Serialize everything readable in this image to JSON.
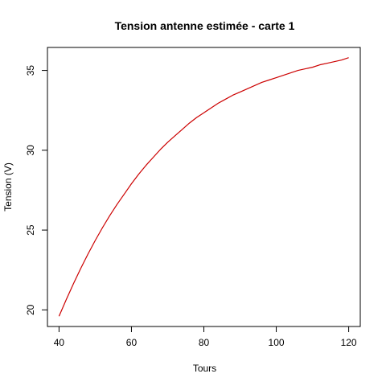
{
  "chart_data": {
    "type": "line",
    "title": "Tension antenne estimée - carte 1",
    "xlabel": "Tours",
    "ylabel": "Tension (V)",
    "xlim": [
      36.8,
      123.2
    ],
    "ylim": [
      18.96,
      36.44
    ],
    "xticks": [
      40,
      60,
      80,
      100,
      120
    ],
    "yticks": [
      20,
      25,
      30,
      35
    ],
    "grid": false,
    "series": [
      {
        "color": "#cc0000",
        "x": [
          40,
          42,
          44,
          46,
          48,
          50,
          52,
          54,
          56,
          58,
          60,
          62,
          64,
          66,
          68,
          70,
          72,
          74,
          76,
          78,
          80,
          82,
          84,
          86,
          88,
          90,
          92,
          94,
          96,
          98,
          100,
          102,
          104,
          106,
          108,
          110,
          112,
          114,
          116,
          118,
          120
        ],
        "y": [
          19.6,
          20.65,
          21.65,
          22.6,
          23.5,
          24.35,
          25.15,
          25.9,
          26.6,
          27.25,
          27.9,
          28.5,
          29.05,
          29.55,
          30.05,
          30.5,
          30.9,
          31.3,
          31.7,
          32.05,
          32.35,
          32.65,
          32.95,
          33.2,
          33.45,
          33.65,
          33.85,
          34.05,
          34.25,
          34.4,
          34.55,
          34.7,
          34.85,
          35.0,
          35.1,
          35.2,
          35.35,
          35.45,
          35.55,
          35.65,
          35.8
        ]
      }
    ]
  }
}
